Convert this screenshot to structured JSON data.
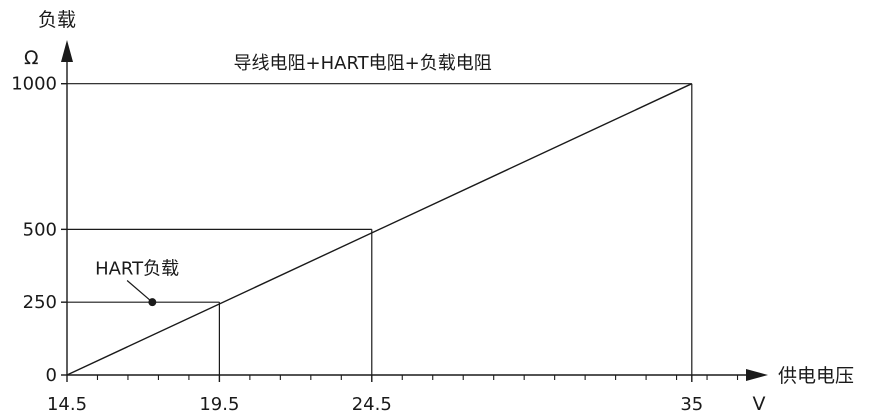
{
  "chart_data": {
    "type": "line",
    "title": "",
    "ylabel": "负载",
    "yunit": "Ω",
    "xlabel": "供电电压",
    "xunit": "V",
    "xlim": [
      14.5,
      37.5
    ],
    "ylim": [
      0,
      1150
    ],
    "x_ticks": [
      {
        "value": 14.5,
        "label": "14.5"
      },
      {
        "value": 19.5,
        "label": "19.5"
      },
      {
        "value": 24.5,
        "label": "24.5"
      },
      {
        "value": 35,
        "label": "35"
      }
    ],
    "y_ticks": [
      {
        "value": 0,
        "label": "0"
      },
      {
        "value": 250,
        "label": "250"
      },
      {
        "value": 500,
        "label": "500"
      },
      {
        "value": 1000,
        "label": "1000"
      }
    ],
    "minor_x_ticks": [
      15.5,
      16.5,
      17.5,
      18.5,
      20.5,
      21.5,
      22.5,
      23.5,
      25.5,
      26.5,
      27.5,
      28.5,
      29.5,
      30.5,
      31.5,
      32.5,
      33.5,
      34.5,
      35.5,
      36.5
    ],
    "series": [
      {
        "values": [
          [
            14.5,
            0
          ],
          [
            35,
            1000
          ]
        ]
      }
    ],
    "reference_lines": [
      {
        "from": [
          14.5,
          1000
        ],
        "to": [
          35,
          1000
        ]
      },
      {
        "from": [
          35,
          1000
        ],
        "to": [
          35,
          0
        ]
      },
      {
        "from": [
          14.5,
          500
        ],
        "to": [
          24.5,
          500
        ]
      },
      {
        "from": [
          24.5,
          500
        ],
        "to": [
          24.5,
          0
        ]
      },
      {
        "from": [
          14.5,
          250
        ],
        "to": [
          19.5,
          250
        ]
      },
      {
        "from": [
          19.5,
          250
        ],
        "to": [
          19.5,
          0
        ]
      }
    ],
    "annotations": [
      {
        "text": "导线电阻+HART电阻+负载电阻",
        "x": 24.2,
        "y": 1050
      },
      {
        "text": "HART负载",
        "x": 16.8,
        "y": 345,
        "point": [
          17.3,
          250
        ]
      }
    ]
  }
}
